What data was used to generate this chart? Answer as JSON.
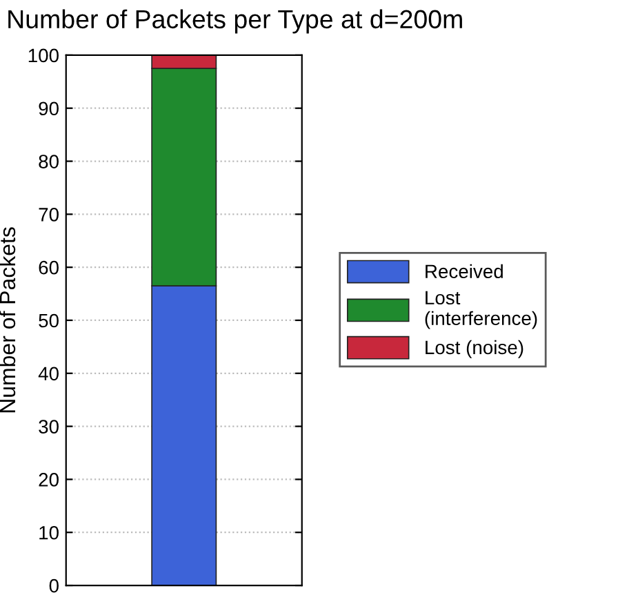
{
  "chart_data": {
    "type": "bar",
    "title": "Number of Packets per Type at d=200m",
    "ylabel": "Number of Packets",
    "categories": [
      null
    ],
    "stacked": true,
    "series": [
      {
        "name": "Received",
        "color": "#3d63d8",
        "values": [
          56.5
        ]
      },
      {
        "name": "Lost\n(interference)",
        "color": "#1f8a2e",
        "values": [
          41
        ]
      },
      {
        "name": "Lost (noise)",
        "color": "#c8283c",
        "values": [
          2.5
        ]
      }
    ],
    "ylim": [
      0,
      100
    ],
    "yticks": [
      0,
      10,
      20,
      30,
      40,
      50,
      60,
      70,
      80,
      90,
      100
    ],
    "grid": "y",
    "legend": "right"
  }
}
